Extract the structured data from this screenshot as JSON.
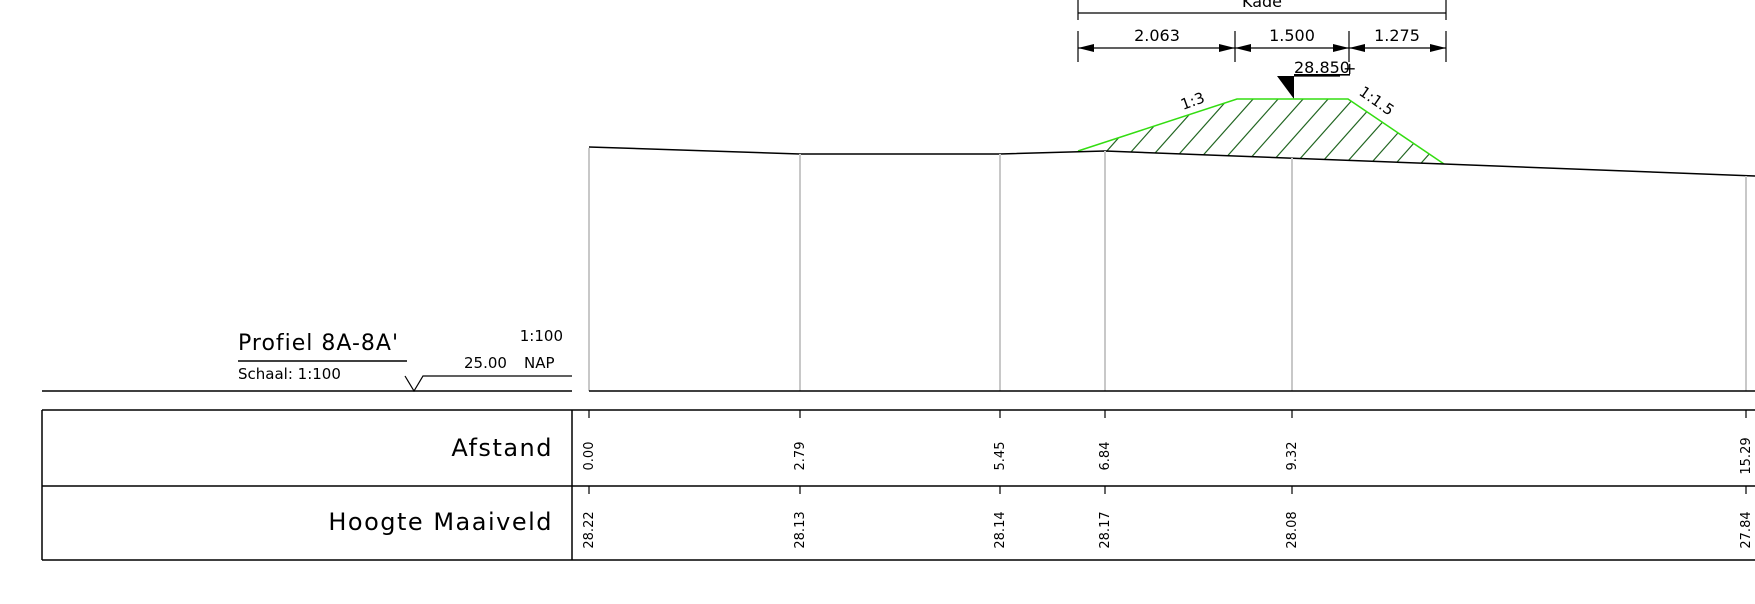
{
  "profile": {
    "title": "Profiel 8A-8A'",
    "subtitle": "Schaal: 1:100",
    "scale": "1:100",
    "reference_level": "25.00",
    "reference_unit": "NAP"
  },
  "table": {
    "row1_label": "Afstand",
    "row2_label": "Hoogte Maaiveld",
    "columns": [
      {
        "distance": "0.00",
        "height": "28.22"
      },
      {
        "distance": "2.79",
        "height": "28.13"
      },
      {
        "distance": "5.45",
        "height": "28.14"
      },
      {
        "distance": "6.84",
        "height": "28.17"
      },
      {
        "distance": "9.32",
        "height": "28.08"
      },
      {
        "distance": "15.29",
        "height": "27.84"
      }
    ]
  },
  "kade": {
    "label": "Kade",
    "dim_left": "2.063",
    "dim_crest": "1.500",
    "dim_right": "1.275",
    "crest_level": "28.850",
    "slope_left": "1:3",
    "slope_right": "1:1.5"
  },
  "colors": {
    "kade_outline": "#33dd11",
    "hatch": "#226622",
    "grid": "#c8c8c8"
  }
}
